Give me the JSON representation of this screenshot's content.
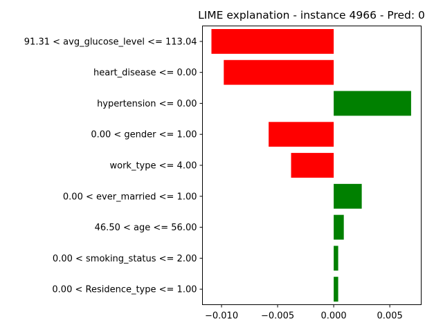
{
  "chart_data": {
    "type": "bar",
    "orientation": "horizontal",
    "title": "LIME explanation - instance 4966 - Pred: 0",
    "xlabel": "",
    "ylabel": "",
    "categories": [
      "91.31 < avg_glucose_level <= 113.04",
      "heart_disease <= 0.00",
      "hypertension <= 0.00",
      "0.00 < gender <= 1.00",
      "work_type <= 4.00",
      "0.00 < ever_married <= 1.00",
      "46.50 < age <= 56.00",
      "0.00 < smoking_status <= 2.00",
      "0.00 < Residence_type <= 1.00"
    ],
    "values": [
      -0.0109,
      -0.0098,
      0.0069,
      -0.0058,
      -0.0038,
      0.0025,
      0.0009,
      0.0004,
      0.0004
    ],
    "xlim": [
      -0.0117,
      0.0078
    ],
    "xticks": [
      -0.01,
      -0.005,
      0.0,
      0.005
    ],
    "xtick_labels": [
      "−0.010",
      "−0.005",
      "0.000",
      "0.005"
    ],
    "grid": false,
    "colors": {
      "positive": "#008000",
      "negative": "#ff0000"
    }
  }
}
